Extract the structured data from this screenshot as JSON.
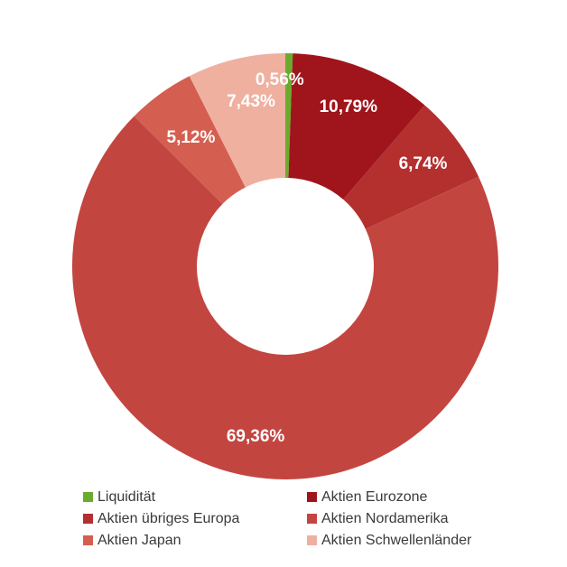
{
  "chart_data": {
    "type": "pie",
    "style": "donut",
    "legend_position": "bottom",
    "slices": [
      {
        "label": "Liquidität",
        "value": 0.56,
        "value_label": "0,56%",
        "color": "#6aab2e"
      },
      {
        "label": "Aktien Eurozone",
        "value": 10.79,
        "value_label": "10,79%",
        "color": "#a0141b"
      },
      {
        "label": "Aktien übriges Europa",
        "value": 6.74,
        "value_label": "6,74%",
        "color": "#b3302f"
      },
      {
        "label": "Aktien Nordamerika",
        "value": 69.36,
        "value_label": "69,36%",
        "color": "#c34540"
      },
      {
        "label": "Aktien Japan",
        "value": 5.12,
        "value_label": "5,12%",
        "color": "#d45f50"
      },
      {
        "label": "Aktien Schwellenländer",
        "value": 7.43,
        "value_label": "7,43%",
        "color": "#efb0a0"
      }
    ]
  }
}
